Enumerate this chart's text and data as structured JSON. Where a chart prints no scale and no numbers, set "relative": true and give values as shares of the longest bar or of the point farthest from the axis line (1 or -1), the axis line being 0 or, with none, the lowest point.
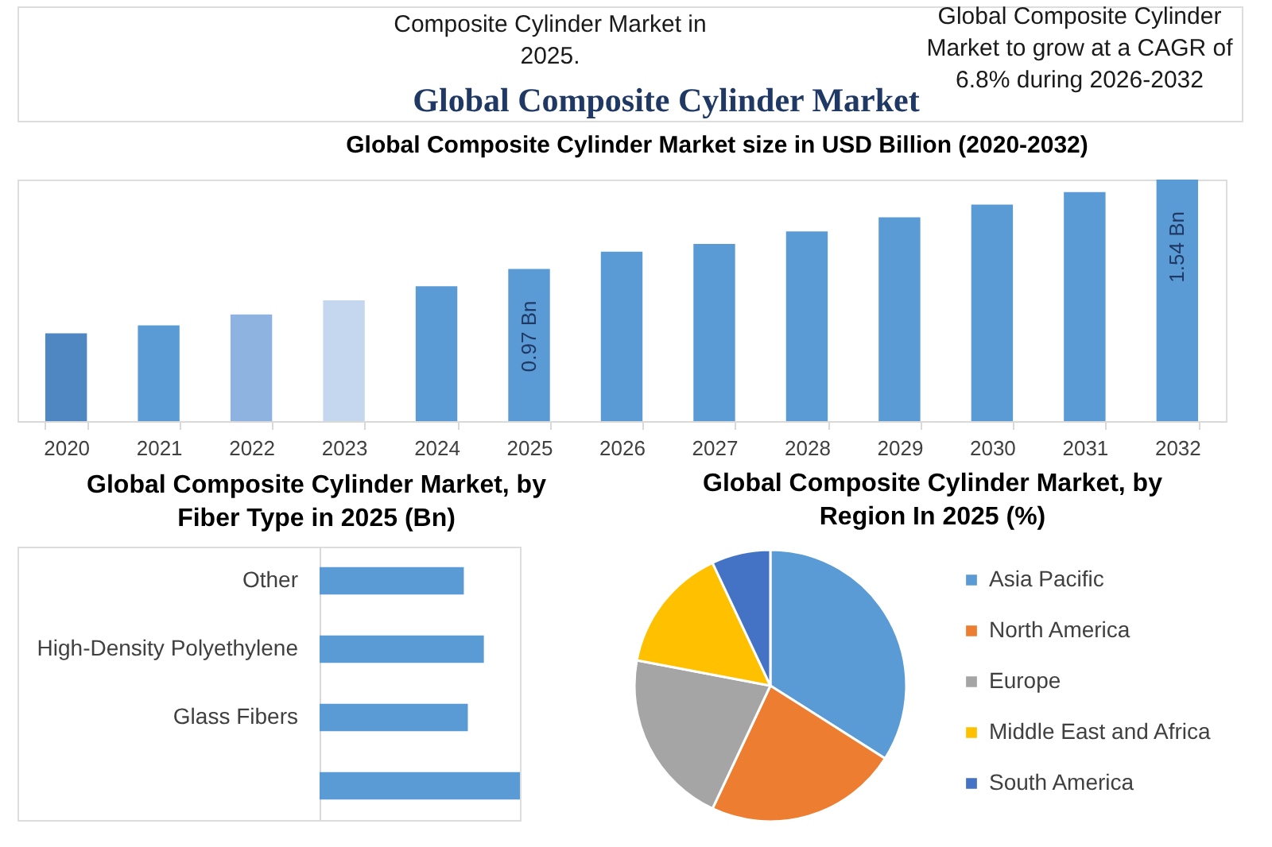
{
  "chart_data": [
    {
      "type": "bar",
      "title": "Global Composite Cylinder Market",
      "subtitle": "Global Composite Cylinder Market size in USD Billion (2020-2032)",
      "annotations": [
        "Composite Cylinder Market in 2025.",
        "Global Composite Cylinder Market to grow at a CAGR of 6.8% during 2026-2032"
      ],
      "categories": [
        "2020",
        "2021",
        "2022",
        "2023",
        "2024",
        "2025",
        "2026",
        "2027",
        "2028",
        "2029",
        "2030",
        "2031",
        "2032"
      ],
      "values": [
        0.56,
        0.61,
        0.68,
        0.77,
        0.86,
        0.97,
        1.08,
        1.13,
        1.21,
        1.3,
        1.38,
        1.46,
        1.54
      ],
      "colors": [
        "#4f87c2",
        "#5b9bd5",
        "#8fb3e0",
        "#c4d7ef",
        "#5b9bd5",
        "#5b9bd5",
        "#5b9bd5",
        "#5b9bd5",
        "#5b9bd5",
        "#5b9bd5",
        "#5b9bd5",
        "#5b9bd5",
        "#5b9bd5"
      ],
      "tick_labels": "x",
      "value_labels": [
        null,
        null,
        null,
        null,
        null,
        "0.97 Bn",
        null,
        null,
        null,
        null,
        null,
        null,
        "1.54 Bn"
      ]
    },
    {
      "type": "bar",
      "orientation": "horizontal",
      "title": "Global Composite Cylinder Market, by Fiber Type in 2025 (Bn)",
      "categories": [
        "Other",
        "High-Density Polyethylene",
        "Glass Fibers",
        null
      ],
      "values": [
        0.72,
        0.82,
        0.74,
        1
      ],
      "color": "#5b9bd5",
      "relative": true
    },
    {
      "type": "pie",
      "title": "Global Composite Cylinder Market, by Region In 2025 (%)",
      "categories": [
        "Asia Pacific",
        "North America",
        "Europe",
        "Middle East and Africa",
        "South America"
      ],
      "values": [
        34,
        23,
        21,
        15,
        7
      ],
      "colors": [
        "#5b9bd5",
        "#ed7d31",
        "#a5a5a5",
        "#ffc000",
        "#4472c4"
      ],
      "legend": "right"
    }
  ]
}
